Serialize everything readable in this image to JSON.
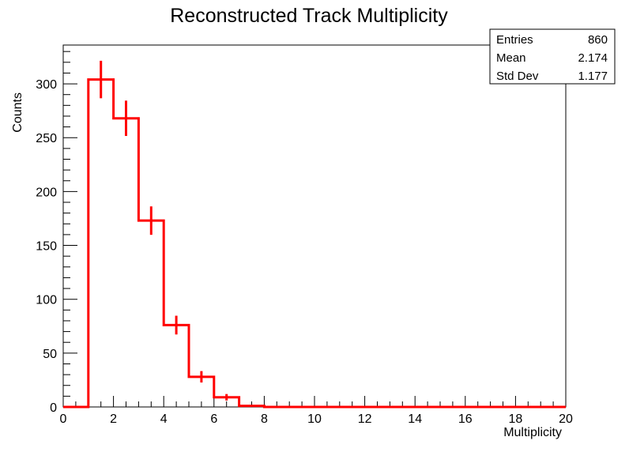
{
  "chart_data": {
    "type": "histogram",
    "title": "Reconstructed Track Multiplicity",
    "xlabel": "Multiplicity",
    "ylabel": "Counts",
    "xlim": [
      0,
      20
    ],
    "ylim": [
      0,
      336
    ],
    "x_ticks": [
      0,
      2,
      4,
      6,
      8,
      10,
      12,
      14,
      16,
      18,
      20
    ],
    "y_ticks": [
      0,
      50,
      100,
      150,
      200,
      250,
      300
    ],
    "bin_edges": [
      0,
      1,
      2,
      3,
      4,
      5,
      6,
      7,
      8,
      9,
      10,
      11,
      12,
      13,
      14,
      15,
      16,
      17,
      18,
      19,
      20
    ],
    "values": [
      0,
      304,
      268,
      173,
      76,
      28,
      9,
      1,
      0,
      0,
      0,
      0,
      0,
      0,
      0,
      0,
      0,
      0,
      0,
      0
    ],
    "errors": [
      0,
      17.4,
      16.4,
      13.2,
      8.7,
      5.3,
      3.0,
      1.0,
      0,
      0,
      0,
      0,
      0,
      0,
      0,
      0,
      0,
      0,
      0,
      0
    ],
    "line_color": "#ff0000",
    "grid": false,
    "stats": [
      {
        "label": "Entries",
        "value": "860"
      },
      {
        "label": "Mean",
        "value": "2.174"
      },
      {
        "label": "Std Dev",
        "value": "1.177"
      }
    ],
    "stats_placement": "top-right"
  }
}
